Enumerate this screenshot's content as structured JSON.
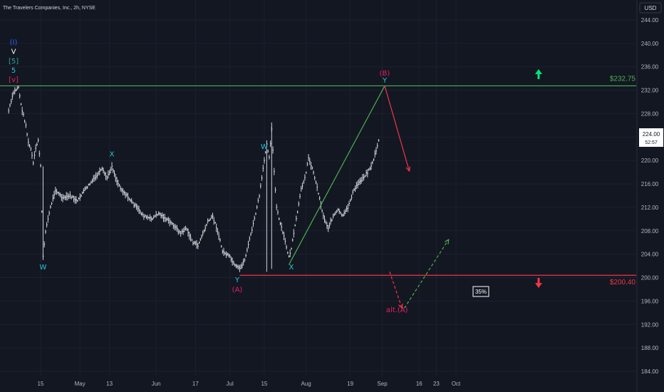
{
  "chart_data": {
    "type": "line",
    "title": "The Travelers Companies, Inc., 2h, NYSE",
    "currency": "USD",
    "ylim": [
      184,
      244
    ],
    "y_ticks": [
      "244.00",
      "240.00",
      "236.00",
      "232.00",
      "228.00",
      "224.00",
      "220.00",
      "216.00",
      "212.00",
      "208.00",
      "204.00",
      "200.00",
      "196.00",
      "192.00",
      "188.00",
      "184.00"
    ],
    "x_ticks": [
      "15",
      "May",
      "13",
      "Jun",
      "17",
      "Jul",
      "15",
      "Aug",
      "19",
      "Sep",
      "16",
      "23",
      "Oct"
    ],
    "current_price": "224.00",
    "countdown": "52:57",
    "levels": [
      {
        "label": "$232.75",
        "value": 232.75,
        "color": "#4caf50"
      },
      {
        "label": "$200.40",
        "value": 200.4,
        "color": "#f23645"
      }
    ],
    "probability_label": "35%",
    "price_series": {
      "name": "",
      "points": [
        [
          "Apr 02",
          228.5
        ],
        [
          "Apr 04",
          231.6
        ],
        [
          "Apr 06",
          232.6
        ],
        [
          "Apr 07",
          229.5
        ],
        [
          "Apr 09",
          226.0
        ],
        [
          "Apr 10",
          223.0
        ],
        [
          "Apr 11",
          222.0
        ],
        [
          "Apr 12",
          219.5
        ],
        [
          "Apr 13",
          222.0
        ],
        [
          "Apr 14",
          223.5
        ],
        [
          "Apr 15",
          219.0
        ],
        [
          "Apr 16",
          203.5
        ],
        [
          "Apr 17",
          208.0
        ],
        [
          "Apr 19",
          212.0
        ],
        [
          "Apr 21",
          215.0
        ],
        [
          "Apr 24",
          213.5
        ],
        [
          "Apr 27",
          214.0
        ],
        [
          "Apr 30",
          213.0
        ],
        [
          "May 02",
          214.5
        ],
        [
          "May 05",
          216.0
        ],
        [
          "May 08",
          217.5
        ],
        [
          "May 10",
          218.5
        ],
        [
          "May 12",
          217.0
        ],
        [
          "May 14",
          219.0
        ],
        [
          "May 16",
          216.5
        ],
        [
          "May 18",
          215.0
        ],
        [
          "May 21",
          213.5
        ],
        [
          "May 24",
          212.0
        ],
        [
          "May 27",
          210.5
        ],
        [
          "May 30",
          210.0
        ],
        [
          "Jun 02",
          211.0
        ],
        [
          "Jun 05",
          210.0
        ],
        [
          "Jun 08",
          209.0
        ],
        [
          "Jun 11",
          207.5
        ],
        [
          "Jun 13",
          208.5
        ],
        [
          "Jun 16",
          206.0
        ],
        [
          "Jun 18",
          205.5
        ],
        [
          "Jun 20",
          207.5
        ],
        [
          "Jun 22",
          209.5
        ],
        [
          "Jun 24",
          210.5
        ],
        [
          "Jun 26",
          208.0
        ],
        [
          "Jun 28",
          204.5
        ],
        [
          "Jul 01",
          203.5
        ],
        [
          "Jul 03",
          202.0
        ],
        [
          "Jul 05",
          201.5
        ],
        [
          "Jul 07",
          203.0
        ],
        [
          "Jul 09",
          206.5
        ],
        [
          "Jul 11",
          210.0
        ],
        [
          "Jul 13",
          214.0
        ],
        [
          "Jul 15",
          220.0
        ],
        [
          "Jul 16",
          223.0
        ],
        [
          "Jul 17",
          220.5
        ],
        [
          "Jul 18",
          225.5
        ],
        [
          "Jul 19",
          218.0
        ],
        [
          "Jul 20",
          212.0
        ],
        [
          "Jul 21",
          210.0
        ],
        [
          "Jul 23",
          207.0
        ],
        [
          "Jul 25",
          203.5
        ],
        [
          "Jul 26",
          205.0
        ],
        [
          "Jul 28",
          210.0
        ],
        [
          "Jul 30",
          215.0
        ],
        [
          "Aug 01",
          218.0
        ],
        [
          "Aug 02",
          220.5
        ],
        [
          "Aug 04",
          218.0
        ],
        [
          "Aug 06",
          214.5
        ],
        [
          "Aug 08",
          210.5
        ],
        [
          "Aug 10",
          208.5
        ],
        [
          "Aug 12",
          210.5
        ],
        [
          "Aug 14",
          211.5
        ],
        [
          "Aug 16",
          210.5
        ],
        [
          "Aug 18",
          212.0
        ],
        [
          "Aug 20",
          214.5
        ],
        [
          "Aug 22",
          216.0
        ],
        [
          "Aug 24",
          217.0
        ],
        [
          "Aug 26",
          218.0
        ],
        [
          "Aug 28",
          219.5
        ],
        [
          "Aug 30",
          222.5
        ],
        [
          "Aug 31",
          224.5
        ]
      ]
    },
    "wave_labels": [
      {
        "text": "(I)",
        "color": "#2962ff",
        "date": "Apr 04",
        "price": 239.8
      },
      {
        "text": "V",
        "color": "#ffffff",
        "date": "Apr 04",
        "price": 238.2
      },
      {
        "text": "[5]",
        "color": "#26a69a",
        "date": "Apr 04",
        "price": 236.6
      },
      {
        "text": "5",
        "color": "#26c6da",
        "date": "Apr 04",
        "price": 235.0
      },
      {
        "text": "[v]",
        "color": "#e91e63",
        "date": "Apr 04",
        "price": 233.4
      },
      {
        "text": "W",
        "color": "#26c6da",
        "date": "Apr 16",
        "price": 201.4
      },
      {
        "text": "X",
        "color": "#26c6da",
        "date": "May 14",
        "price": 220.7
      },
      {
        "text": "Y",
        "color": "#26c6da",
        "date": "Jul 04",
        "price": 199.2
      },
      {
        "text": "(A)",
        "color": "#e91e63",
        "date": "Jul 04",
        "price": 197.6
      },
      {
        "text": "W",
        "color": "#26c6da",
        "date": "Jul 15",
        "price": 222.0
      },
      {
        "text": "X",
        "color": "#26c6da",
        "date": "Jul 26",
        "price": 201.4
      },
      {
        "text": "(B)",
        "color": "#e91e63",
        "date": "Sep 02",
        "price": 234.5
      },
      {
        "text": "Y",
        "color": "#26c6da",
        "date": "Sep 02",
        "price": 233.3
      },
      {
        "text": "alt.(A)",
        "color": "#e91e63",
        "date": "Sep 07",
        "price": 194.1
      }
    ]
  },
  "icons": {
    "up_arrow": "green-up-arrow-icon",
    "down_arrow": "red-down-arrow-icon"
  }
}
